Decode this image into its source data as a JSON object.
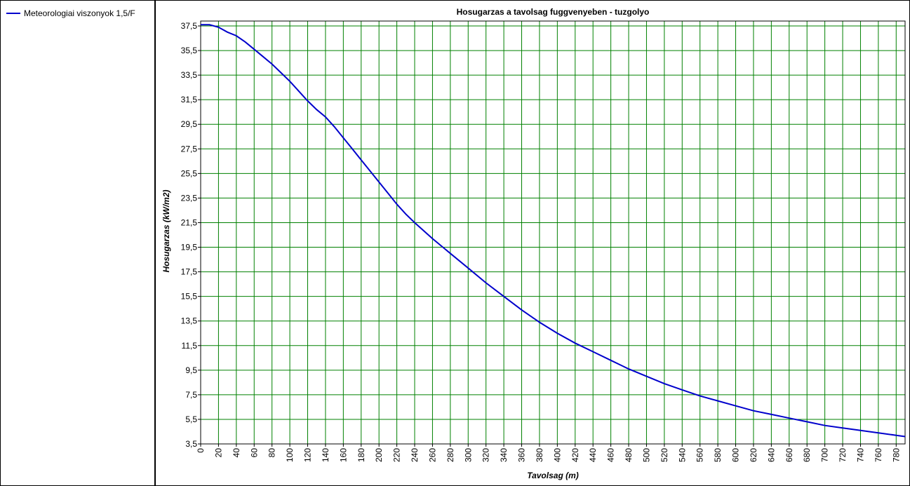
{
  "chart_data": {
    "type": "line",
    "title": "Hosugarzas a tavolsag fuggvenyeben - tuzgolyo",
    "xlabel": "Tavolsag (m)",
    "ylabel": "Hosugarzas (kW/m2)",
    "xlim": [
      0,
      790
    ],
    "ylim": [
      3.5,
      37.9
    ],
    "x_ticks": [
      0,
      20,
      40,
      60,
      80,
      100,
      120,
      140,
      160,
      180,
      200,
      220,
      240,
      260,
      280,
      300,
      320,
      340,
      360,
      380,
      400,
      420,
      440,
      460,
      480,
      500,
      520,
      540,
      560,
      580,
      600,
      620,
      640,
      660,
      680,
      700,
      720,
      740,
      760,
      780
    ],
    "y_ticks": [
      "3,5",
      "5,5",
      "7,5",
      "9,5",
      "11,5",
      "13,5",
      "15,5",
      "17,5",
      "19,5",
      "21,5",
      "23,5",
      "25,5",
      "27,5",
      "29,5",
      "31,5",
      "33,5",
      "35,5",
      "37,5"
    ],
    "grid": true,
    "grid_color": "#008000",
    "legend_position": "left-panel",
    "series": [
      {
        "name": "Meteorologiai viszonyok 1,5/F",
        "color": "#0000cc",
        "x": [
          0,
          10,
          20,
          30,
          40,
          50,
          60,
          70,
          80,
          90,
          100,
          110,
          120,
          130,
          140,
          150,
          160,
          170,
          180,
          190,
          200,
          210,
          220,
          230,
          240,
          260,
          280,
          300,
          320,
          340,
          360,
          380,
          400,
          420,
          440,
          460,
          480,
          500,
          520,
          540,
          560,
          580,
          600,
          620,
          640,
          660,
          680,
          700,
          720,
          740,
          760,
          780,
          790
        ],
        "y": [
          37.6,
          37.6,
          37.4,
          37.0,
          36.7,
          36.2,
          35.6,
          35.0,
          34.4,
          33.7,
          33.0,
          32.2,
          31.4,
          30.7,
          30.1,
          29.3,
          28.4,
          27.5,
          26.6,
          25.7,
          24.8,
          23.9,
          23.0,
          22.2,
          21.5,
          20.2,
          19.0,
          17.8,
          16.6,
          15.5,
          14.4,
          13.4,
          12.5,
          11.7,
          11.0,
          10.3,
          9.6,
          9.0,
          8.4,
          7.9,
          7.4,
          7.0,
          6.6,
          6.2,
          5.9,
          5.6,
          5.3,
          5.0,
          4.8,
          4.6,
          4.4,
          4.2,
          4.1
        ]
      }
    ]
  }
}
